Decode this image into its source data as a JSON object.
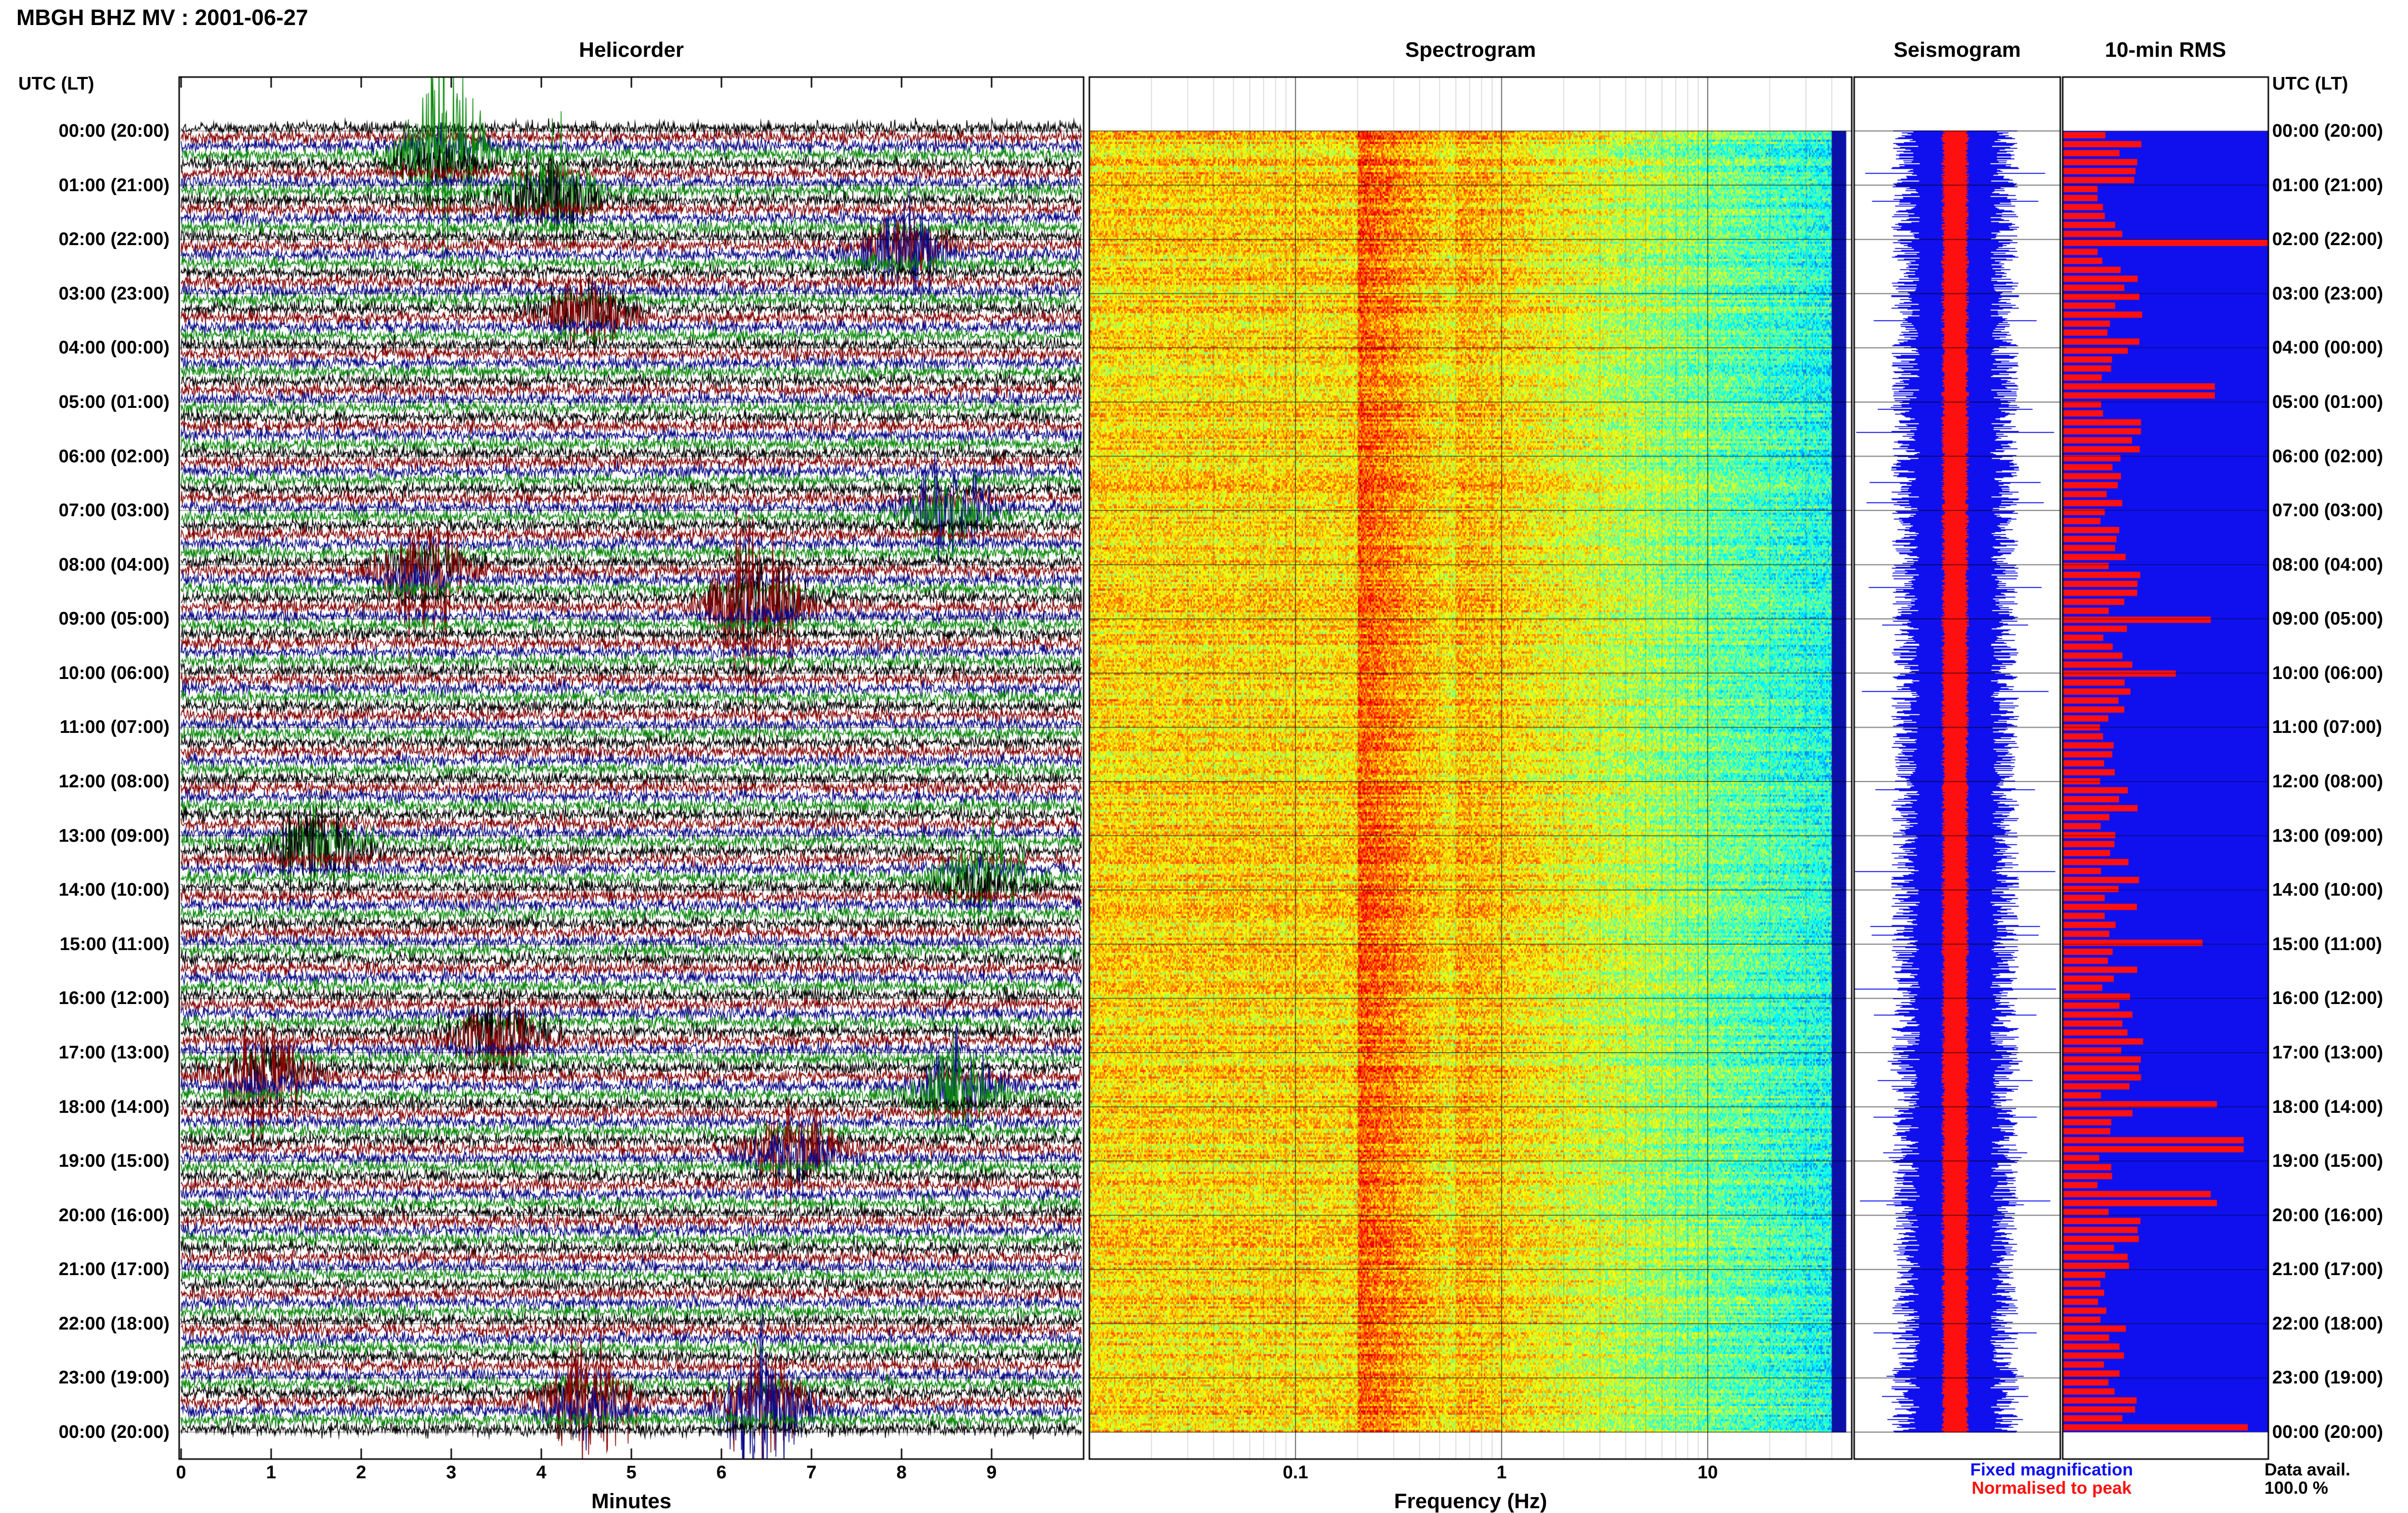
{
  "title": "MBGH BHZ MV : 2001-06-27",
  "panels": {
    "helicorder": "Helicorder",
    "spectrogram": "Spectrogram",
    "seismogram": "Seismogram",
    "rms": "10-min RMS"
  },
  "axis_header_left": "UTC (LT)",
  "axis_header_right": "UTC (LT)",
  "legend": {
    "fixed": "Fixed magnification",
    "normalised": "Normalised to peak",
    "fixed_color": "#1010ee",
    "normalised_color": "#ff1010"
  },
  "data_avail": {
    "label": "Data avail.",
    "value": "100.0 %"
  },
  "colors": {
    "trace_cycle": [
      "#000000",
      "#880000",
      "#0a0a8a",
      "#0a8a0a"
    ],
    "rms_background": "#1010ee",
    "rms_bar": "#ff1010",
    "seismogram_fixed": "#1010ee",
    "seismogram_normalised": "#ff1010"
  },
  "chart_data": [
    {
      "type": "line",
      "panel": "Helicorder",
      "xlabel": "Minutes",
      "x_ticks": [
        "0",
        "1",
        "2",
        "3",
        "4",
        "5",
        "6",
        "7",
        "8",
        "9"
      ],
      "xlim": [
        0,
        10
      ],
      "y_ticks": [
        "00:00 (20:00)",
        "01:00 (21:00)",
        "02:00 (22:00)",
        "03:00 (23:00)",
        "04:00 (00:00)",
        "05:00 (01:00)",
        "06:00 (02:00)",
        "07:00 (03:00)",
        "08:00 (04:00)",
        "09:00 (05:00)",
        "10:00 (06:00)",
        "11:00 (07:00)",
        "12:00 (08:00)",
        "13:00 (09:00)",
        "14:00 (10:00)",
        "15:00 (11:00)",
        "16:00 (12:00)",
        "17:00 (13:00)",
        "18:00 (14:00)",
        "19:00 (15:00)",
        "20:00 (16:00)",
        "21:00 (17:00)",
        "22:00 (18:00)",
        "23:00 (19:00)",
        "00:00 (20:00)"
      ],
      "row_count": 145,
      "events": [
        {
          "hour": 0.55,
          "minute": 2.9,
          "amplitude": 3.2
        },
        {
          "hour": 1.3,
          "minute": 4.1,
          "amplitude": 2.5
        },
        {
          "hour": 2.4,
          "minute": 8.0,
          "amplitude": 1.8
        },
        {
          "hour": 3.5,
          "minute": 4.5,
          "amplitude": 1.6
        },
        {
          "hour": 7.2,
          "minute": 8.5,
          "amplitude": 2.0
        },
        {
          "hour": 8.2,
          "minute": 2.7,
          "amplitude": 2.2
        },
        {
          "hour": 8.9,
          "minute": 6.4,
          "amplitude": 3.5
        },
        {
          "hour": 13.3,
          "minute": 1.5,
          "amplitude": 1.9
        },
        {
          "hour": 14.0,
          "minute": 8.9,
          "amplitude": 1.8
        },
        {
          "hour": 16.8,
          "minute": 3.5,
          "amplitude": 2.0
        },
        {
          "hour": 17.5,
          "minute": 0.9,
          "amplitude": 2.0
        },
        {
          "hour": 17.9,
          "minute": 8.6,
          "amplitude": 1.9
        },
        {
          "hour": 19.0,
          "minute": 6.8,
          "amplitude": 2.0
        },
        {
          "hour": 23.6,
          "minute": 4.5,
          "amplitude": 2.3
        },
        {
          "hour": 23.7,
          "minute": 6.5,
          "amplitude": 3.0
        }
      ]
    },
    {
      "type": "heatmap",
      "panel": "Spectrogram",
      "xlabel": "Frequency (Hz)",
      "x_scale": "log",
      "xlim": [
        0.01,
        50
      ],
      "x_ticks": [
        "0.1",
        "1",
        "10"
      ],
      "x_tick_values": [
        0.1,
        1,
        10
      ],
      "time_range_hours": [
        0,
        24
      ],
      "dominant_band_hz": [
        0.2,
        0.6
      ],
      "high_frequency_cutoff_hz": 40
    },
    {
      "type": "line",
      "panel": "Seismogram",
      "series": [
        {
          "name": "Fixed magnification",
          "relative_half_width": 0.62
        },
        {
          "name": "Normalised to peak",
          "relative_half_width": 0.13
        }
      ],
      "time_range_hours": [
        0,
        24
      ]
    },
    {
      "type": "bar",
      "panel": "10-min RMS",
      "interval_minutes": 10,
      "bars": 145,
      "baseline_relative": 0.28,
      "peaks": [
        {
          "hour": 2.05,
          "relative_value": 1.0
        },
        {
          "hour": 4.75,
          "relative_value": 0.74
        },
        {
          "hour": 9.0,
          "relative_value": 0.72
        },
        {
          "hour": 10.0,
          "relative_value": 0.55
        },
        {
          "hour": 15.0,
          "relative_value": 0.68
        },
        {
          "hour": 18.0,
          "relative_value": 0.75
        },
        {
          "hour": 18.75,
          "relative_value": 0.88
        },
        {
          "hour": 19.6,
          "relative_value": 0.72
        },
        {
          "hour": 19.8,
          "relative_value": 0.75
        },
        {
          "hour": 23.95,
          "relative_value": 0.9
        }
      ]
    }
  ]
}
